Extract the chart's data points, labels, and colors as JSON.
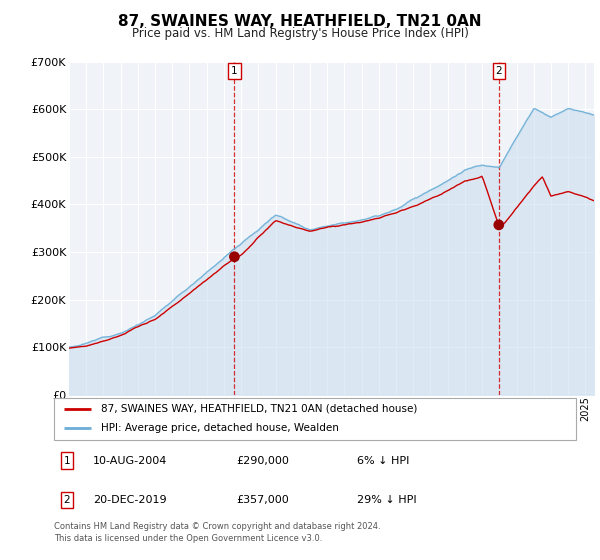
{
  "title": "87, SWAINES WAY, HEATHFIELD, TN21 0AN",
  "subtitle": "Price paid vs. HM Land Registry's House Price Index (HPI)",
  "ylim": [
    0,
    700000
  ],
  "yticks": [
    0,
    100000,
    200000,
    300000,
    400000,
    500000,
    600000,
    700000
  ],
  "line1_color": "#cc0000",
  "line2_color": "#6baed6",
  "line2_fill_color": "#c6dbef",
  "background_color": "#ffffff",
  "chart_bg": "#f0f4f8",
  "legend_label1": "87, SWAINES WAY, HEATHFIELD, TN21 0AN (detached house)",
  "legend_label2": "HPI: Average price, detached house, Wealden",
  "marker1_date": 2004.61,
  "marker1_price": 290000,
  "marker1_label": "1",
  "marker1_hpi_pct": "6% ↓ HPI",
  "marker1_date_str": "10-AUG-2004",
  "marker2_date": 2019.97,
  "marker2_price": 357000,
  "marker2_label": "2",
  "marker2_hpi_pct": "29% ↓ HPI",
  "marker2_date_str": "20-DEC-2019",
  "footer": "Contains HM Land Registry data © Crown copyright and database right 2024.\nThis data is licensed under the Open Government Licence v3.0.",
  "xmin": 1995,
  "xmax": 2025.5,
  "noise_seed": 12
}
